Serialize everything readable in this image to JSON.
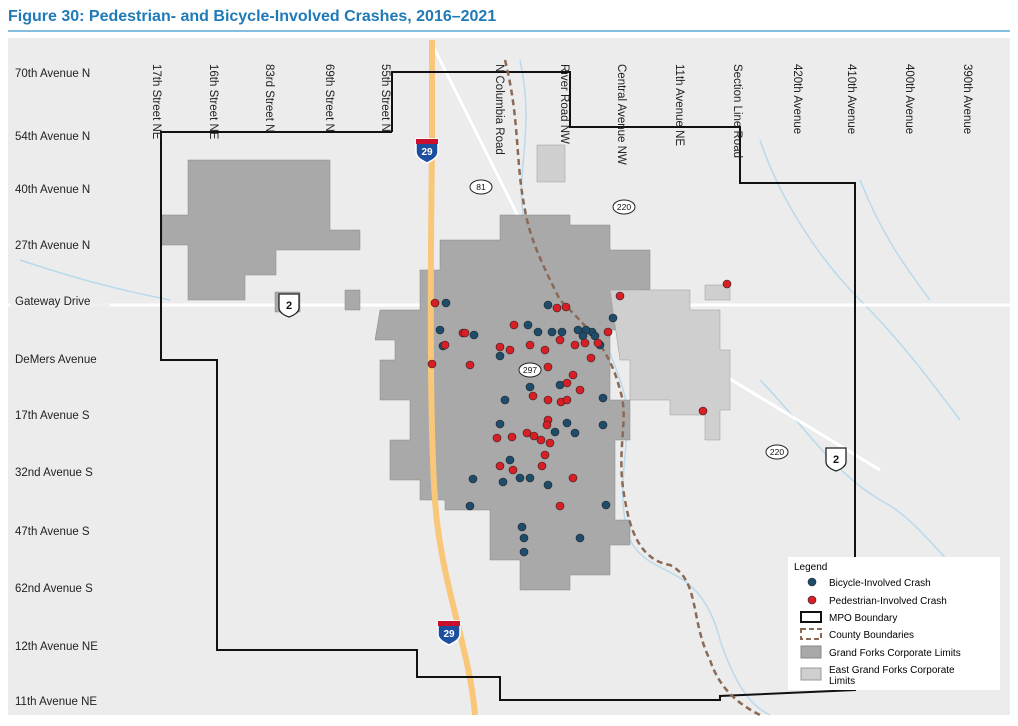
{
  "header": {
    "title": "Figure 30: Pedestrian- and Bicycle-Involved Crashes, 2016–2021"
  },
  "map": {
    "west_labels": [
      "70th Avenue N",
      "54th Avenue N",
      "40th Avenue  N",
      "27th Avenue N",
      "Gateway Drive",
      "DeMers Avenue",
      "17th Avenue S",
      "32nd Avenue S",
      "47th Avenue S",
      "62nd Avenue S",
      "12th Avenue NE",
      "11th Avenue NE"
    ],
    "north_labels": [
      "17th Street NE",
      "16th Street NE",
      "83rd Street N",
      "69th Street N",
      "55th Street N",
      "N Columbia Road",
      "River Road NW",
      "Central Avenue NW",
      "11th Avenue NE",
      "Section Line Road",
      "420th Avenue",
      "410th Avenue",
      "400th Avenue",
      "390th Avenue"
    ],
    "shields": [
      "29",
      "29",
      "81",
      "220",
      "220",
      "2",
      "2",
      "297"
    ]
  },
  "legend": {
    "title": "Legend",
    "items": [
      "Bicycle-Involved Crash",
      "Pedestrian-Involved Crash",
      "MPO Boundary",
      "County Boundaries",
      "Grand Forks Corporate Limits",
      "East Grand Forks Corporate Limits"
    ]
  }
}
